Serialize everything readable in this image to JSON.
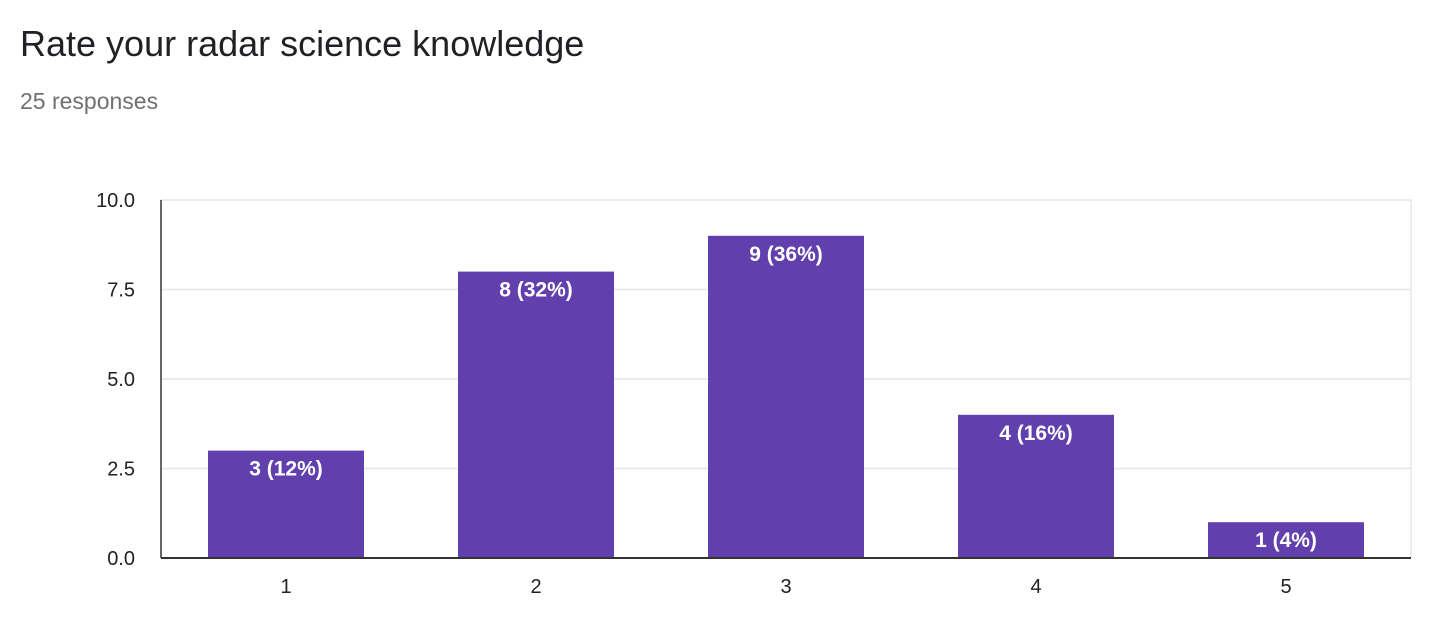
{
  "header": {
    "title": "Rate your radar science knowledge",
    "subtitle": "25 responses"
  },
  "colors": {
    "bar": "#6140ae",
    "grid": "#e6e6e6",
    "axis": "#333333",
    "frame": "#e6e6e6"
  },
  "chart_data": {
    "type": "bar",
    "title": "Rate your radar science knowledge",
    "subtitle": "25 responses",
    "xlabel": "",
    "ylabel": "",
    "categories": [
      "1",
      "2",
      "3",
      "4",
      "5"
    ],
    "values": [
      3,
      8,
      9,
      4,
      1
    ],
    "data_labels": [
      "3 (12%)",
      "8 (32%)",
      "9 (36%)",
      "4 (16%)",
      "1 (4%)"
    ],
    "ylim": [
      0,
      10
    ],
    "yticks": [
      0,
      2.5,
      5,
      7.5,
      10
    ],
    "ytick_labels": [
      "0.0",
      "2.5",
      "5.0",
      "7.5",
      "10.0"
    ],
    "grid": true,
    "legend": "none"
  }
}
